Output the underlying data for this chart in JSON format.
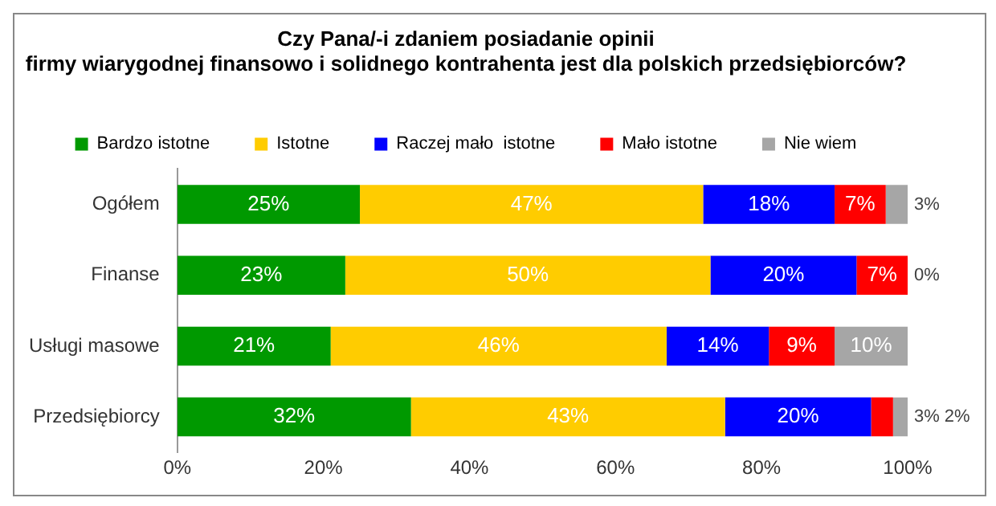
{
  "chart_data": {
    "type": "bar",
    "orientation": "horizontal",
    "stacked": true,
    "title": "Czy Pana/-i zdaniem posiadanie opinii\nfirmy wiarygodnej finansowo i solidnego kontrahenta jest dla polskich przedsiębiorców?",
    "categories": [
      "Ogółem",
      "Finanse",
      "Usługi masowe",
      "Przedsiębiorcy"
    ],
    "series": [
      {
        "name": "Bardzo istotne",
        "color": "#009900",
        "values": [
          25,
          23,
          21,
          32
        ],
        "value_labels": [
          "25%",
          "23%",
          "21%",
          "32%"
        ]
      },
      {
        "name": "Istotne",
        "color": "#ffcc00",
        "values": [
          47,
          50,
          46,
          43
        ],
        "value_labels": [
          "47%",
          "50%",
          "46%",
          "43%"
        ]
      },
      {
        "name": "Raczej mało  istotne",
        "color": "#0000ff",
        "values": [
          18,
          20,
          14,
          20
        ],
        "value_labels": [
          "18%",
          "20%",
          "14%",
          "20%"
        ]
      },
      {
        "name": "Mało istotne",
        "color": "#ff0000",
        "values": [
          7,
          7,
          9,
          3
        ],
        "value_labels": [
          "7%",
          "7%",
          "9%",
          "3%"
        ]
      },
      {
        "name": "Nie wiem",
        "color": "#a6a6a6",
        "values": [
          3,
          0,
          10,
          2
        ],
        "value_labels": [
          "3%",
          "0%",
          "10%",
          "2%"
        ]
      }
    ],
    "xlim": [
      0,
      100
    ],
    "xticks": [
      {
        "value": 0,
        "label": "0%"
      },
      {
        "value": 20,
        "label": "20%"
      },
      {
        "value": 40,
        "label": "40%"
      },
      {
        "value": 60,
        "label": "60%"
      },
      {
        "value": 80,
        "label": "80%"
      },
      {
        "value": 100,
        "label": "100%"
      }
    ],
    "legend": "top",
    "grid": false
  }
}
